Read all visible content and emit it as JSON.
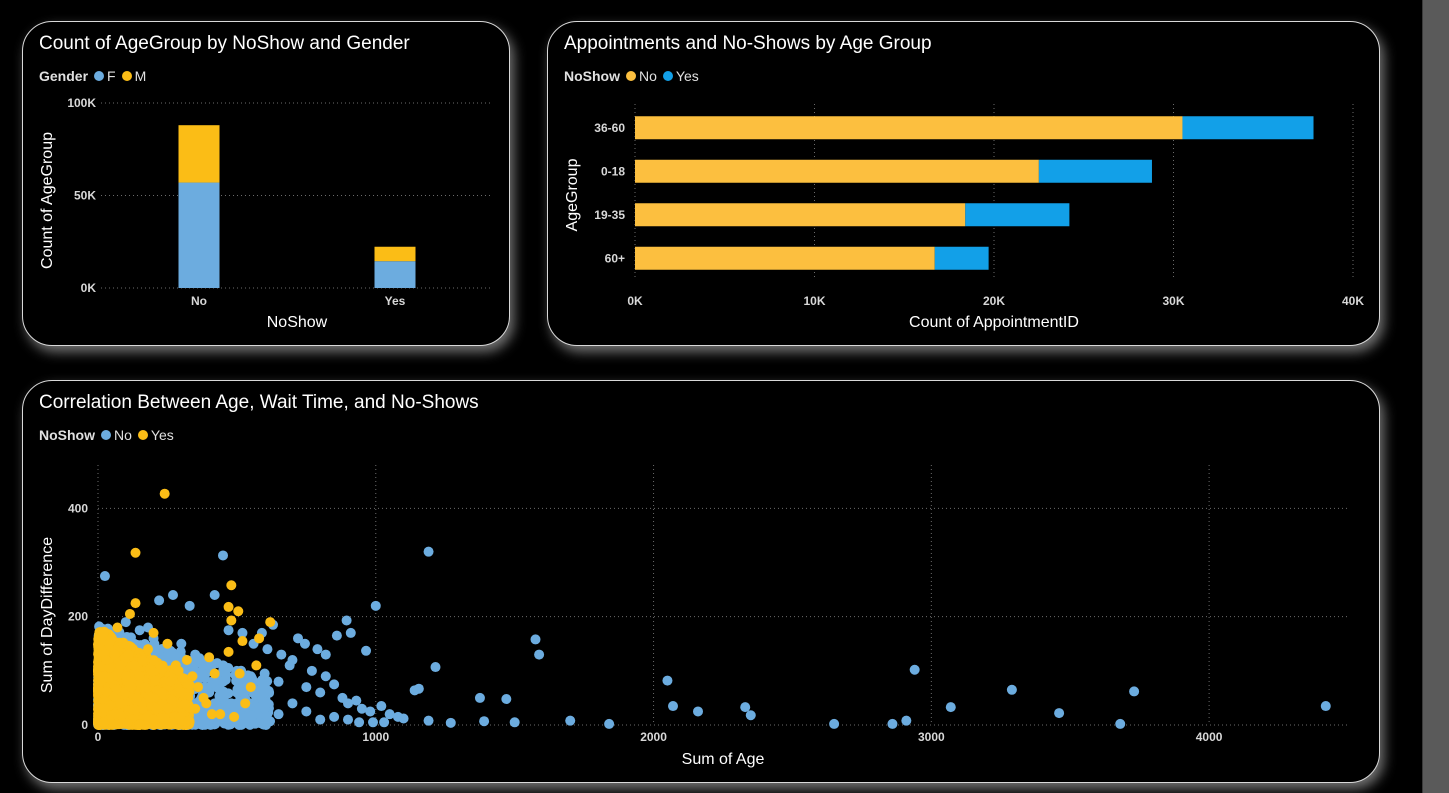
{
  "colors": {
    "female": "#6cacdf",
    "male": "#fbbd16",
    "no_bar": "#fcbf3f",
    "yes_bar": "#12a0e8",
    "scatter_no": "#6cacdf",
    "scatter_yes": "#fbbd16",
    "grid": "#6b6b6b",
    "text": "#d8d8d8"
  },
  "charts": {
    "gender": {
      "title": "Count of AgeGroup by NoShow and Gender",
      "legend_title": "Gender",
      "chart_data": {
        "type": "bar",
        "stacked": true,
        "categories": [
          "No",
          "Yes"
        ],
        "series": [
          {
            "name": "F",
            "values": [
              57000,
              14500
            ]
          },
          {
            "name": "M",
            "values": [
              31000,
              7800
            ]
          }
        ],
        "xlabel": "NoShow",
        "ylabel": "Count of AgeGroup",
        "ylim": [
          0,
          100000
        ],
        "yticks": [
          {
            "value": 0,
            "label": "0K"
          },
          {
            "value": 50000,
            "label": "50K"
          },
          {
            "value": 100000,
            "label": "100K"
          }
        ],
        "legend_position": "top-left",
        "grid": true
      }
    },
    "agegroup": {
      "title": "Appointments and No-Shows by Age Group",
      "legend_title": "NoShow",
      "chart_data": {
        "type": "bar",
        "orientation": "horizontal",
        "stacked": true,
        "categories": [
          "36-60",
          "0-18",
          "19-35",
          "60+"
        ],
        "series": [
          {
            "name": "No",
            "values": [
              30500,
              22500,
              18400,
              16700
            ]
          },
          {
            "name": "Yes",
            "values": [
              7300,
              6300,
              5800,
              3000
            ]
          }
        ],
        "xlabel": "Count of AppointmentID",
        "ylabel": "AgeGroup",
        "xlim": [
          0,
          40000
        ],
        "xticks": [
          {
            "value": 0,
            "label": "0K"
          },
          {
            "value": 10000,
            "label": "10K"
          },
          {
            "value": 20000,
            "label": "20K"
          },
          {
            "value": 30000,
            "label": "30K"
          },
          {
            "value": 40000,
            "label": "40K"
          }
        ],
        "legend_position": "top-left",
        "grid": true
      }
    },
    "scatter": {
      "title": "Correlation Between Age, Wait Time, and No-Shows",
      "legend_title": "NoShow",
      "chart_data": {
        "type": "scatter",
        "xlabel": "Sum of Age",
        "ylabel": "Sum of DayDifference",
        "xlim": [
          0,
          4500
        ],
        "ylim": [
          0,
          480
        ],
        "xticks": [
          0,
          1000,
          2000,
          3000,
          4000
        ],
        "yticks": [
          0,
          200,
          400
        ],
        "legend_position": "top-left",
        "grid": true,
        "series": [
          {
            "name": "No",
            "points": [
              [
                25,
                275
              ],
              [
                450,
                313
              ],
              [
                1190,
                320
              ],
              [
                1000,
                220
              ],
              [
                895,
                193
              ],
              [
                965,
                137
              ],
              [
                1215,
                107
              ],
              [
                1575,
                158
              ],
              [
                1588,
                130
              ],
              [
                1155,
                67
              ],
              [
                1140,
                64
              ],
              [
                1375,
                50
              ],
              [
                1470,
                48
              ],
              [
                2050,
                82
              ],
              [
                2070,
                35
              ],
              [
                2160,
                25
              ],
              [
                2330,
                33
              ],
              [
                2350,
                18
              ],
              [
                1190,
                8
              ],
              [
                1270,
                4
              ],
              [
                1390,
                7
              ],
              [
                1500,
                5
              ],
              [
                1700,
                8
              ],
              [
                1840,
                2
              ],
              [
                2650,
                2
              ],
              [
                2860,
                2
              ],
              [
                2910,
                8
              ],
              [
                2940,
                102
              ],
              [
                3070,
                33
              ],
              [
                3290,
                65
              ],
              [
                3460,
                22
              ],
              [
                3680,
                2
              ],
              [
                3730,
                62
              ],
              [
                4420,
                35
              ],
              [
                100,
                190
              ],
              [
                150,
                175
              ],
              [
                200,
                160
              ],
              [
                250,
                140
              ],
              [
                300,
                150
              ],
              [
                350,
                130
              ],
              [
                400,
                120
              ],
              [
                450,
                110
              ],
              [
                500,
                100
              ],
              [
                550,
                90
              ],
              [
                600,
                95
              ],
              [
                650,
                80
              ],
              [
                700,
                120
              ],
              [
                720,
                160
              ],
              [
                750,
                70
              ],
              [
                800,
                60
              ],
              [
                850,
                75
              ],
              [
                880,
                50
              ],
              [
                900,
                40
              ],
              [
                930,
                45
              ],
              [
                950,
                30
              ],
              [
                980,
                25
              ],
              [
                1020,
                35
              ],
              [
                1050,
                20
              ],
              [
                1080,
                15
              ],
              [
                1100,
                12
              ],
              [
                300,
                50
              ],
              [
                350,
                40
              ],
              [
                400,
                30
              ],
              [
                450,
                20
              ],
              [
                500,
                60
              ],
              [
                550,
                40
              ],
              [
                600,
                30
              ],
              [
                650,
                20
              ],
              [
                700,
                40
              ],
              [
                750,
                25
              ],
              [
                800,
                10
              ],
              [
                850,
                15
              ],
              [
                900,
                10
              ],
              [
                200,
                100
              ],
              [
                250,
                80
              ],
              [
                300,
                90
              ],
              [
                350,
                70
              ],
              [
                400,
                60
              ],
              [
                450,
                80
              ],
              [
                500,
                40
              ],
              [
                520,
                170
              ],
              [
                560,
                150
              ],
              [
                610,
                140
              ],
              [
                660,
                130
              ],
              [
                690,
                110
              ],
              [
                770,
                100
              ],
              [
                820,
                90
              ],
              [
                860,
                165
              ],
              [
                910,
                170
              ],
              [
                940,
                5
              ],
              [
                990,
                5
              ],
              [
                1030,
                5
              ],
              [
                180,
                180
              ],
              [
                220,
                230
              ],
              [
                270,
                240
              ],
              [
                330,
                220
              ],
              [
                420,
                240
              ],
              [
                470,
                175
              ],
              [
                590,
                170
              ],
              [
                630,
                185
              ],
              [
                745,
                150
              ],
              [
                790,
                140
              ],
              [
                820,
                130
              ]
            ]
          },
          {
            "name": "Yes",
            "points": [
              [
                240,
                427
              ],
              [
                135,
                318
              ],
              [
                480,
                258
              ],
              [
                135,
                225
              ],
              [
                470,
                218
              ],
              [
                505,
                210
              ],
              [
                620,
                190
              ],
              [
                480,
                193
              ],
              [
                115,
                205
              ],
              [
                580,
                160
              ],
              [
                520,
                155
              ],
              [
                570,
                110
              ],
              [
                510,
                95
              ],
              [
                470,
                135
              ],
              [
                400,
                125
              ],
              [
                420,
                95
              ],
              [
                530,
                40
              ],
              [
                550,
                70
              ],
              [
                440,
                20
              ],
              [
                490,
                15
              ],
              [
                380,
                50
              ],
              [
                350,
                30
              ],
              [
                300,
                60
              ],
              [
                280,
                110
              ],
              [
                250,
                150
              ],
              [
                200,
                170
              ],
              [
                180,
                140
              ],
              [
                160,
                120
              ],
              [
                140,
                100
              ],
              [
                120,
                80
              ],
              [
                100,
                60
              ],
              [
                80,
                40
              ],
              [
                60,
                20
              ],
              [
                40,
                10
              ],
              [
                20,
                5
              ],
              [
                10,
                80
              ],
              [
                30,
                120
              ],
              [
                50,
                160
              ],
              [
                70,
                180
              ],
              [
                90,
                150
              ],
              [
                110,
                130
              ],
              [
                130,
                110
              ],
              [
                150,
                90
              ],
              [
                170,
                70
              ],
              [
                190,
                50
              ],
              [
                210,
                30
              ],
              [
                230,
                60
              ],
              [
                260,
                80
              ],
              [
                290,
                100
              ],
              [
                320,
                120
              ],
              [
                340,
                90
              ],
              [
                360,
                70
              ],
              [
                390,
                40
              ],
              [
                410,
                20
              ],
              [
                20,
                170
              ],
              [
                40,
                150
              ],
              [
                60,
                130
              ],
              [
                80,
                110
              ],
              [
                100,
                90
              ],
              [
                120,
                70
              ],
              [
                140,
                50
              ],
              [
                160,
                30
              ],
              [
                180,
                15
              ],
              [
                200,
                10
              ]
            ]
          }
        ],
        "dense_cluster": [
          {
            "name": "No",
            "x_range": [
              0,
              620
            ],
            "y_range": [
              0,
              185
            ],
            "count": 900
          },
          {
            "name": "Yes",
            "x_range": [
              0,
              330
            ],
            "y_range": [
              0,
              180
            ],
            "count": 1300
          }
        ]
      }
    }
  }
}
